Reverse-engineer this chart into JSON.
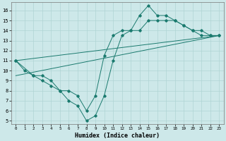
{
  "xlabel": "Humidex (Indice chaleur)",
  "bg_color": "#cde8e9",
  "grid_color": "#afd4d4",
  "line_color": "#1a7a6e",
  "xlim": [
    -0.5,
    23.5
  ],
  "ylim": [
    4.7,
    16.8
  ],
  "xticks": [
    0,
    1,
    2,
    3,
    4,
    5,
    6,
    7,
    8,
    9,
    10,
    11,
    12,
    13,
    14,
    15,
    16,
    17,
    18,
    19,
    20,
    21,
    22,
    23
  ],
  "yticks": [
    5,
    6,
    7,
    8,
    9,
    10,
    11,
    12,
    13,
    14,
    15,
    16
  ],
  "curve1_x": [
    0,
    1,
    2,
    3,
    4,
    5,
    6,
    7,
    8,
    9,
    10,
    11,
    12,
    13,
    14,
    15,
    16,
    17,
    18,
    19,
    20,
    21,
    22,
    23
  ],
  "curve1_y": [
    11,
    10,
    9.5,
    9,
    8.5,
    8,
    7,
    6.5,
    5,
    5.5,
    7.5,
    11,
    13.5,
    14,
    15.5,
    16.5,
    15.5,
    15.5,
    15,
    14.5,
    14,
    13.5,
    13.5,
    13.5
  ],
  "curve2_x": [
    0,
    2,
    3,
    4,
    5,
    6,
    7,
    8,
    9,
    10,
    11,
    12,
    13,
    14,
    15,
    16,
    17,
    18,
    19,
    20,
    21,
    22,
    23
  ],
  "curve2_y": [
    11,
    9.5,
    9.5,
    9,
    8,
    8,
    7.5,
    6,
    7.5,
    11.5,
    13.5,
    14,
    14,
    14,
    15,
    15,
    15,
    15,
    14.5,
    14,
    14,
    13.5,
    13.5
  ],
  "line1_x": [
    0,
    23
  ],
  "line1_y": [
    11,
    13.5
  ],
  "line2_x": [
    0,
    23
  ],
  "line2_y": [
    9.5,
    13.5
  ]
}
